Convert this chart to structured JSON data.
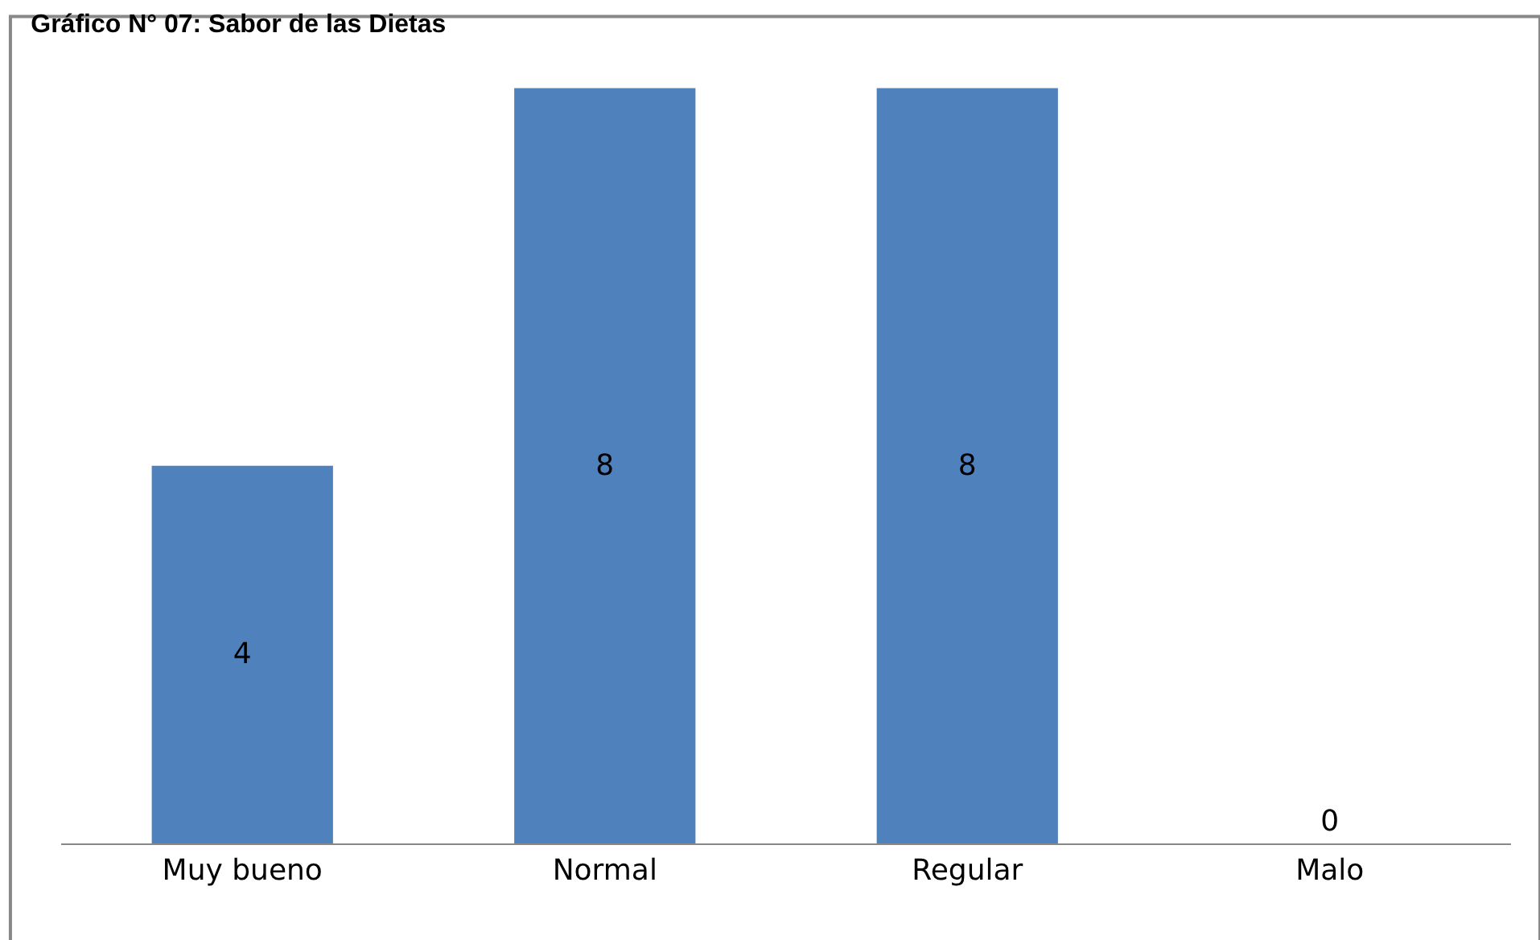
{
  "chart_data": {
    "type": "bar",
    "title": "Gráfico N° 07: Sabor de las Dietas",
    "categories": [
      "Muy bueno",
      "Normal",
      "Regular",
      "Malo"
    ],
    "values": [
      4,
      8,
      8,
      0
    ],
    "color": "#4f81bd",
    "data_labels": true
  }
}
